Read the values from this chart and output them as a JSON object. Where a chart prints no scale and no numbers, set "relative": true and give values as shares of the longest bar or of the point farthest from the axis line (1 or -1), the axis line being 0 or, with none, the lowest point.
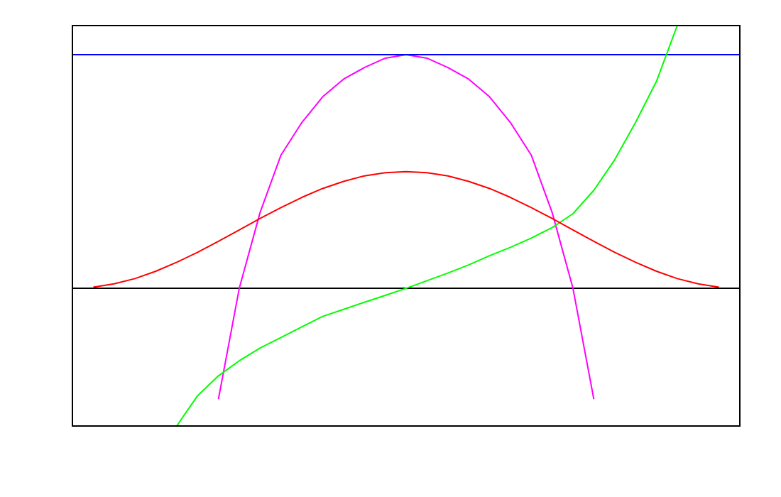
{
  "chart_data": {
    "type": "line",
    "relative": true,
    "legend": false,
    "marker": "none",
    "categories": [
      null,
      null,
      null,
      null,
      null,
      null,
      null,
      null,
      null,
      null,
      null,
      null,
      null,
      null,
      null,
      null,
      null,
      null,
      null,
      null,
      null,
      null,
      null,
      null,
      null,
      null,
      null,
      null,
      null,
      null,
      null,
      null,
      null
    ],
    "series": [
      {
        "color": "#ff0000",
        "values": [
          null,
          0.004,
          0.017,
          0.037,
          0.065,
          0.099,
          0.137,
          0.179,
          0.222,
          0.266,
          0.307,
          0.346,
          0.38,
          0.407,
          0.428,
          0.44,
          0.444,
          0.44,
          0.428,
          0.407,
          0.38,
          0.346,
          0.307,
          0.266,
          0.222,
          0.179,
          0.137,
          0.099,
          0.065,
          0.037,
          0.017,
          0.004,
          null
        ]
      },
      {
        "color": "#00ff00",
        "values": [
          null,
          null,
          null,
          null,
          null,
          -0.524,
          -0.409,
          -0.333,
          -0.276,
          -0.227,
          -0.187,
          -0.147,
          -0.107,
          -0.08,
          -0.053,
          -0.027,
          0,
          0.029,
          0.058,
          0.089,
          0.124,
          0.156,
          0.191,
          0.231,
          0.284,
          0.373,
          0.489,
          0.631,
          0.787,
          1,
          null,
          null,
          null
        ]
      },
      {
        "color": "#0000ff",
        "values": [
          0.889,
          0.889,
          0.889,
          0.889,
          0.889,
          0.889,
          0.889,
          0.889,
          0.889,
          0.889,
          0.889,
          0.889,
          0.889,
          0.889,
          0.889,
          0.889,
          0.889,
          0.889,
          0.889,
          0.889,
          0.889,
          0.889,
          0.889,
          0.889,
          0.889,
          0.889,
          0.889,
          0.889,
          0.889,
          0.889,
          0.889,
          0.889,
          0.889
        ]
      },
      {
        "color": "#ff00ff",
        "values": [
          null,
          null,
          null,
          null,
          null,
          null,
          null,
          -0.422,
          0,
          0.289,
          0.507,
          0.631,
          0.729,
          0.796,
          0.84,
          0.876,
          0.889,
          0.876,
          0.84,
          0.796,
          0.729,
          0.631,
          0.507,
          0.289,
          0,
          -0.422,
          null,
          null,
          null,
          null,
          null,
          null,
          null
        ]
      }
    ]
  }
}
